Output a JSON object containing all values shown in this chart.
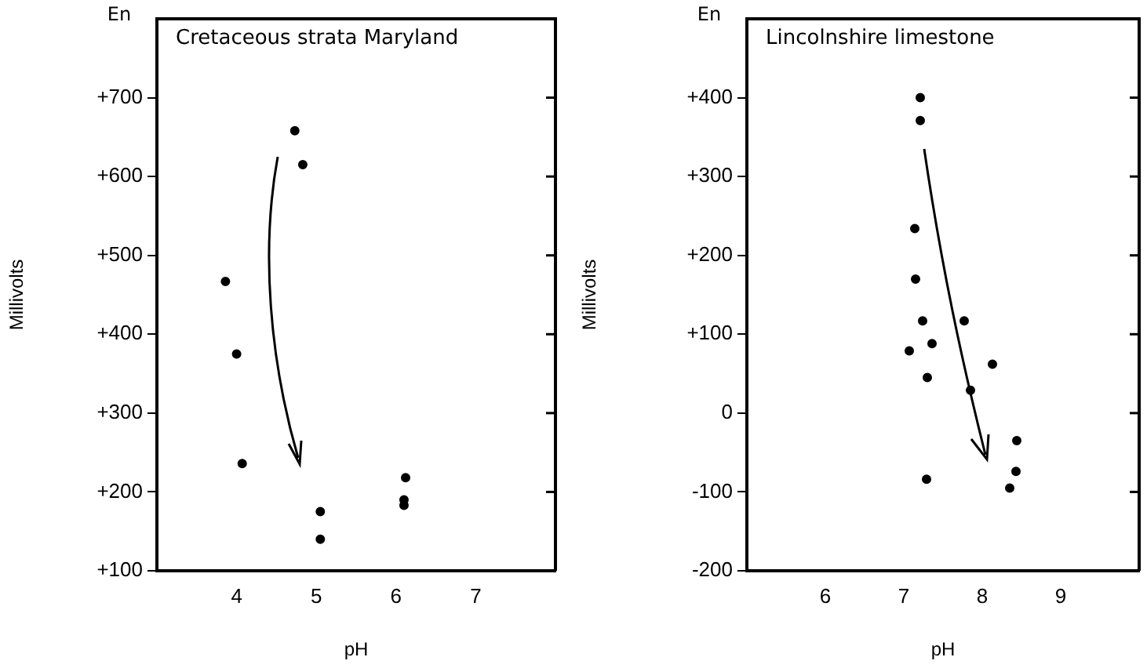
{
  "chart_data": [
    {
      "type": "scatter",
      "title": "Cretaceous strata Maryland",
      "xlabel": "pH",
      "ylabel": "Millivolts",
      "annotations": [
        "En"
      ],
      "series": [
        {
          "color": "#000000",
          "x": [
            4.73,
            4.83,
            3.86,
            4.0,
            4.07,
            5.05,
            5.05,
            6.12,
            6.1,
            6.1
          ],
          "values": [
            658,
            615,
            467,
            375,
            236,
            175,
            140,
            218,
            190,
            183
          ]
        }
      ],
      "xlim": [
        3,
        8
      ],
      "xticks": [
        4,
        5,
        6,
        7
      ],
      "ylim": [
        100,
        800
      ],
      "yticks": [
        {
          "value": 100,
          "label": "+100"
        },
        {
          "value": 200,
          "label": "+200"
        },
        {
          "value": 300,
          "label": "+300"
        },
        {
          "value": 400,
          "label": "+400"
        },
        {
          "value": 500,
          "label": "+500"
        },
        {
          "value": 600,
          "label": "+600"
        },
        {
          "value": 700,
          "label": "+700"
        }
      ],
      "marker": "circle"
    },
    {
      "type": "scatter",
      "title": "Lincolnshire limestone",
      "xlabel": "pH",
      "ylabel": "Millivolts",
      "annotations": [
        "En"
      ],
      "series": [
        {
          "color": "#000000",
          "x": [
            7.21,
            7.21,
            7.14,
            7.15,
            7.24,
            7.07,
            7.36,
            7.3,
            7.77,
            7.85,
            8.13,
            8.44,
            8.43,
            8.35,
            7.29
          ],
          "values": [
            400,
            371,
            234,
            170,
            117,
            79,
            88,
            45,
            117,
            29,
            62,
            -35,
            -74,
            -95,
            -84
          ]
        }
      ],
      "xlim": [
        5,
        10
      ],
      "xticks": [
        6,
        7,
        8,
        9
      ],
      "ylim": [
        -200,
        500
      ],
      "yticks": [
        -200,
        -100,
        0,
        {
          "value": 100,
          "label": "+100"
        },
        {
          "value": 200,
          "label": "+200"
        },
        {
          "value": 300,
          "label": "+300"
        },
        {
          "value": 400,
          "label": "+400"
        }
      ],
      "marker": "circle"
    }
  ]
}
